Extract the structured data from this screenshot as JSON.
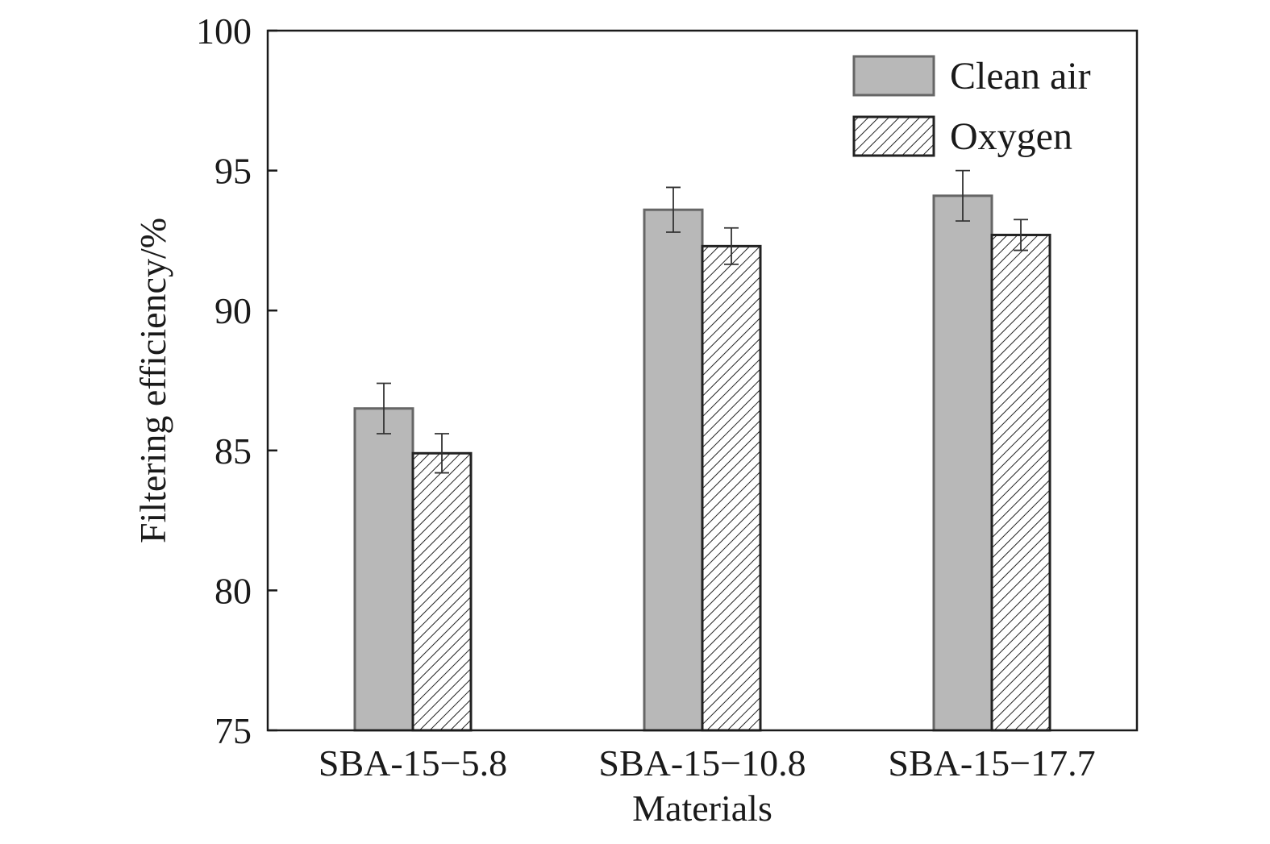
{
  "chart_data": {
    "type": "bar",
    "title": "",
    "xlabel": "Materials",
    "ylabel": "Filtering efficiency/%",
    "ylim": [
      75,
      100
    ],
    "yticks": [
      75,
      80,
      85,
      90,
      95,
      100
    ],
    "grid": false,
    "legend_position": "top-right",
    "categories": [
      "SBA-15−5.8",
      "SBA-15−10.8",
      "SBA-15−17.7"
    ],
    "series": [
      {
        "name": "Clean air",
        "values": [
          86.5,
          93.6,
          94.1
        ],
        "errors": [
          0.9,
          0.8,
          0.9
        ],
        "fill": "#b8b8b8",
        "stroke": "#666666",
        "pattern": "solid"
      },
      {
        "name": "Oxygen",
        "values": [
          84.9,
          92.3,
          92.7
        ],
        "errors": [
          0.7,
          0.65,
          0.55
        ],
        "fill": "#ffffff",
        "stroke": "#222222",
        "pattern": "hatch"
      }
    ]
  }
}
